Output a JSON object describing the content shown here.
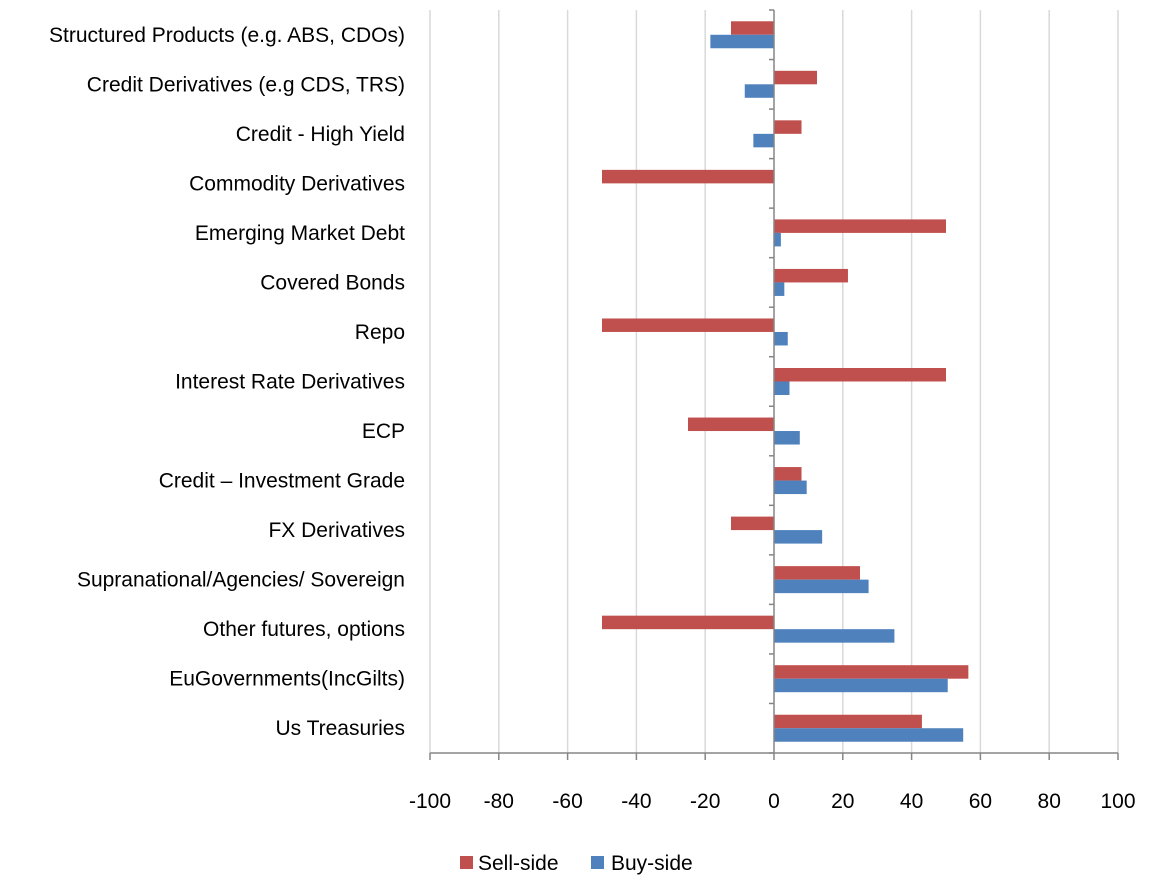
{
  "chart_data": {
    "type": "bar",
    "orientation": "horizontal",
    "categories": [
      "Structured Products (e.g. ABS, CDOs)",
      "Credit Derivatives (e.g CDS, TRS)",
      "Credit - High Yield",
      "Commodity Derivatives",
      "Emerging Market Debt",
      "Covered Bonds",
      "Repo",
      "Interest Rate Derivatives",
      "ECP",
      "Credit – Investment Grade",
      "FX Derivatives",
      "Supranational/Agencies/ Sovereign",
      "Other futures, options",
      "EuGovernments(IncGilts)",
      "Us Treasuries"
    ],
    "series": [
      {
        "name": "Sell-side",
        "color": "#c0504d",
        "values": [
          -12.5,
          12.5,
          8,
          -50,
          50,
          21.5,
          -50,
          50,
          -25,
          8,
          -12.5,
          25,
          -50,
          56.5,
          43
        ]
      },
      {
        "name": "Buy-side",
        "color": "#4f81bd",
        "values": [
          -18.5,
          -8.5,
          -6,
          0,
          2,
          3,
          4,
          4.5,
          7.5,
          9.5,
          14,
          27.5,
          35,
          50.5,
          55
        ]
      }
    ],
    "xlim": [
      -100,
      100
    ],
    "xticks": [
      -100,
      -80,
      -60,
      -40,
      -20,
      0,
      20,
      40,
      60,
      80,
      100
    ],
    "xtick_labels": [
      "-100",
      "-80",
      "-60",
      "-40",
      "-20",
      "0",
      "20",
      "40",
      "60",
      "80",
      "100"
    ],
    "grid": "vertical",
    "grid_color": "#d9d9d9",
    "axis_color": "#868686",
    "legend_position": "bottom",
    "title": "",
    "xlabel": "",
    "ylabel": ""
  }
}
